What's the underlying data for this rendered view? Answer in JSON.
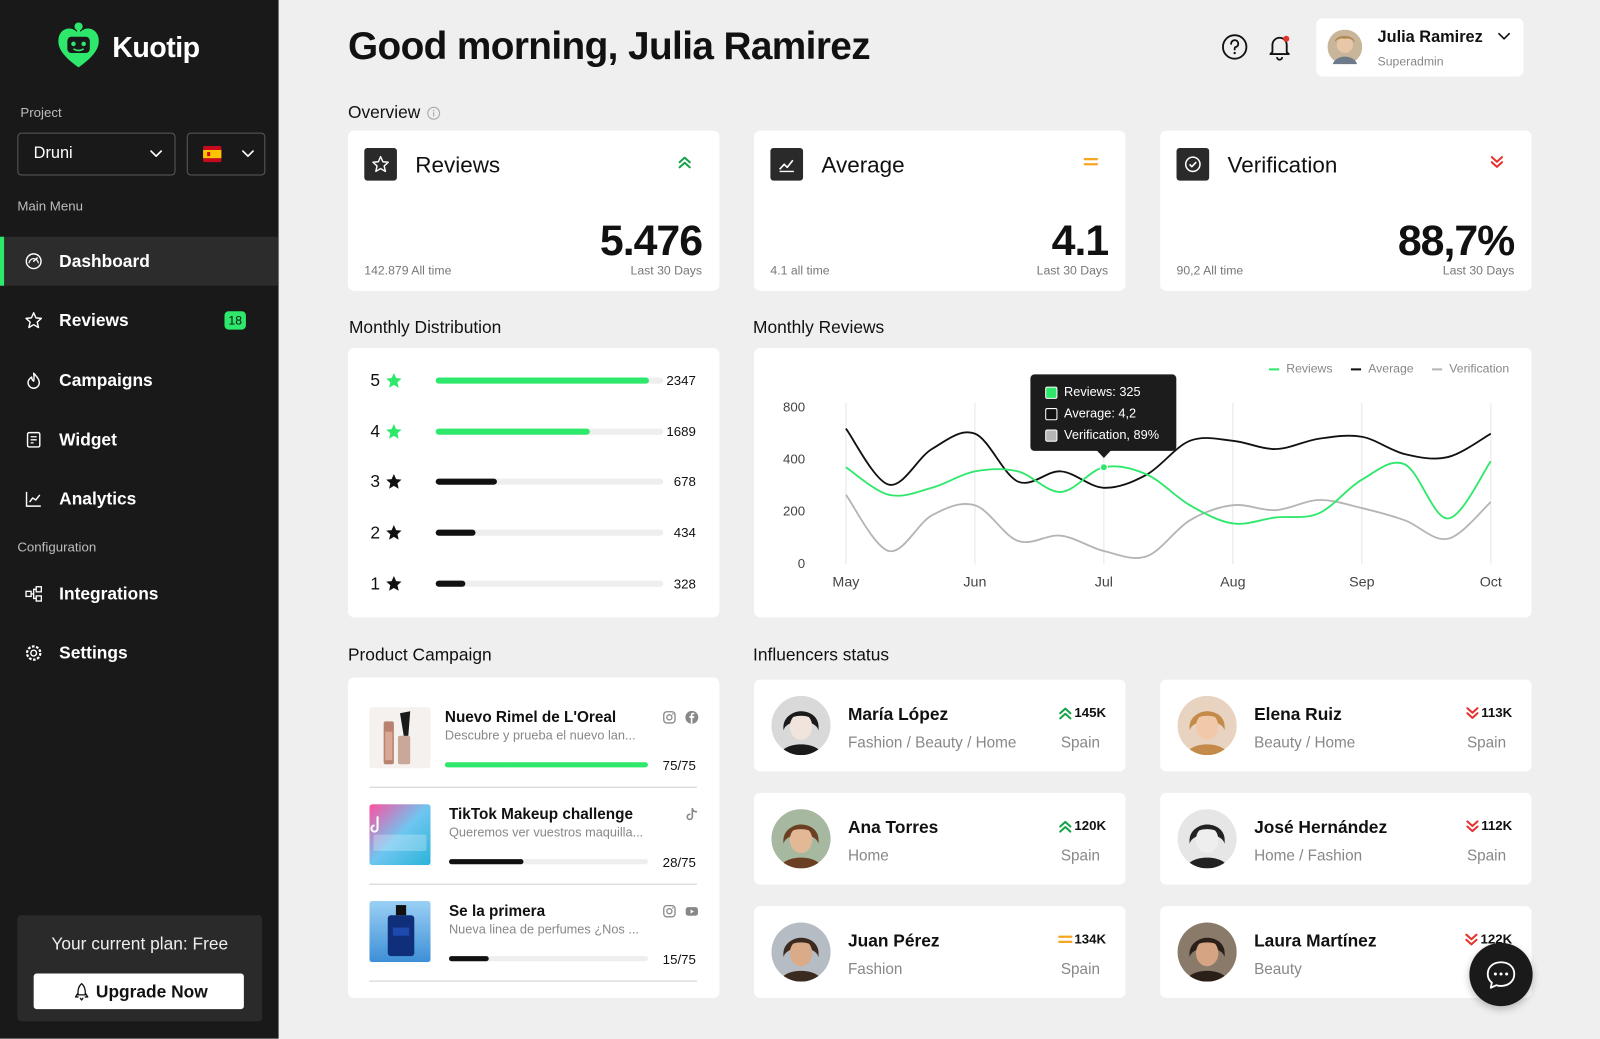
{
  "sidebar": {
    "brand": "Kuotip",
    "project_label": "Project",
    "project": "Druni",
    "main_menu_label": "Main Menu",
    "main_menu": [
      {
        "label": "Dashboard",
        "active": true
      },
      {
        "label": "Reviews",
        "badge": 18
      },
      {
        "label": "Campaigns"
      },
      {
        "label": "Widget"
      },
      {
        "label": "Analytics"
      }
    ],
    "configuration_label": "Configuration",
    "configuration": [
      {
        "label": "Integrations"
      },
      {
        "label": "Settings"
      }
    ],
    "plan": "Your current plan: Free",
    "upgrade": "Upgrade Now"
  },
  "header": {
    "greeting": "Good morning, Julia Ramirez",
    "user": {
      "name": "Julia Ramirez",
      "role": "Superadmin"
    }
  },
  "overview": {
    "title": "Overview",
    "cards": [
      {
        "title": "Reviews",
        "value": "5.476",
        "period": "Last 30 Days",
        "all_time": "142.879 All time",
        "trend": "up"
      },
      {
        "title": "Average",
        "value": "4.1",
        "period": "Last 30 Days",
        "all_time": "4.1 all time",
        "trend": "flat"
      },
      {
        "title": "Verification",
        "value": "88,7%",
        "period": "Last 30 Days",
        "all_time": "90,2 All time",
        "trend": "down"
      }
    ]
  },
  "distribution": {
    "title": "Monthly Distribution",
    "xlim": [
      0,
      2500
    ],
    "rows": [
      {
        "rating": 5,
        "count": 2347,
        "color": "#2ee86b"
      },
      {
        "rating": 4,
        "count": 1689,
        "color": "#2ee86b"
      },
      {
        "rating": 3,
        "count": 678,
        "color": "#111111"
      },
      {
        "rating": 2,
        "count": 434,
        "color": "#111111"
      },
      {
        "rating": 1,
        "count": 328,
        "color": "#111111"
      }
    ]
  },
  "chart_data": {
    "type": "line",
    "title": "Monthly Reviews",
    "categories": [
      "May",
      null,
      null,
      "Jun",
      null,
      null,
      "Jul",
      null,
      null,
      "Aug",
      null,
      null,
      "Sep",
      null,
      null,
      "Oct"
    ],
    "series": [
      {
        "name": "Reviews",
        "color": "#2ee86b",
        "values": [
          373,
          267,
          294,
          357,
          357,
          278,
          373,
          345,
          227,
          157,
          180,
          196,
          325,
          384,
          176,
          396
        ]
      },
      {
        "name": "Average",
        "color": "#111111",
        "values": [
          643,
          306,
          486,
          604,
          318,
          357,
          294,
          345,
          549,
          549,
          486,
          565,
          580,
          447,
          424,
          604
        ]
      },
      {
        "name": "Verification",
        "color": "#b5b5b5",
        "values": [
          267,
          51,
          188,
          227,
          90,
          110,
          51,
          31,
          169,
          227,
          208,
          247,
          216,
          169,
          98,
          239
        ]
      }
    ],
    "ylim": [
      0,
      800
    ],
    "yticks": [
      0,
      200,
      400,
      800
    ],
    "grid": "x",
    "legend": "top-right",
    "tooltip": [
      "Reviews: 325",
      "Average: 4,2",
      "Verification, 89%"
    ]
  },
  "campaigns": {
    "title": "Product Campaign",
    "items": [
      {
        "name": "Nuevo Rimel de L'Oreal",
        "description": "Descubre y prueba el nuevo lan...",
        "progress": [
          75,
          75
        ],
        "color": "#2ee86b",
        "channels": [
          "instagram",
          "facebook"
        ]
      },
      {
        "name": "TikTok Makeup challenge",
        "description": "Queremos ver vuestros maquilla...",
        "progress": [
          28,
          75
        ],
        "color": "#111111",
        "channels": [
          "tiktok"
        ]
      },
      {
        "name": "Se la primera",
        "description": "Nueva linea de perfumes ¿Nos ...",
        "progress": [
          15,
          75
        ],
        "color": "#111111",
        "channels": [
          "instagram",
          "youtube"
        ]
      }
    ]
  },
  "influencers": {
    "title": "Influencers status",
    "items": [
      {
        "name": "María López",
        "categories": "Fashion / Beauty / Home",
        "followers": "145K",
        "trend": "up",
        "country": "Spain"
      },
      {
        "name": "Elena Ruiz",
        "categories": "Beauty / Home",
        "followers": "113K",
        "trend": "down",
        "country": "Spain"
      },
      {
        "name": "Ana Torres",
        "categories": "Home",
        "followers": "120K",
        "trend": "up",
        "country": "Spain"
      },
      {
        "name": "José Hernández",
        "categories": "Home / Fashion",
        "followers": "112K",
        "trend": "down",
        "country": "Spain"
      },
      {
        "name": "Juan Pérez",
        "categories": "Fashion",
        "followers": "134K",
        "trend": "flat",
        "country": "Spain"
      },
      {
        "name": "Laura Martínez",
        "categories": "Beauty",
        "followers": "122K",
        "trend": "down"
      }
    ]
  }
}
